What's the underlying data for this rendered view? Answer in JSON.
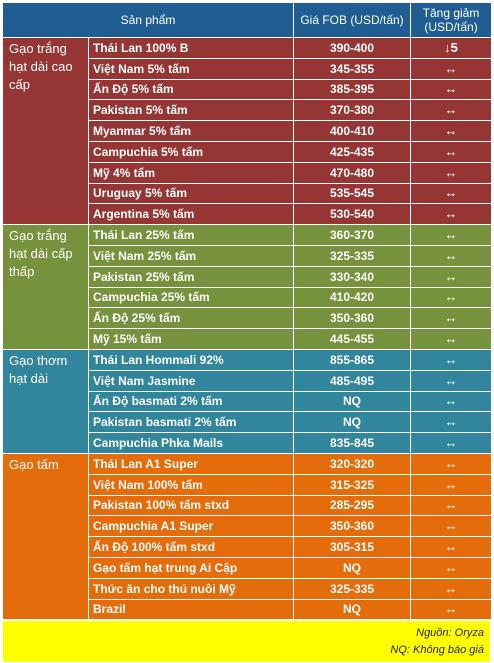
{
  "header": {
    "col_product": "Sản phẩm",
    "col_price": "Giá FOB (USD/tấn)",
    "col_change": "Tăng giảm (USD/tấn)"
  },
  "groups": [
    {
      "name": "Gạo trắng hạt dài cao cấp",
      "color": "#963634",
      "rows": [
        {
          "product": "Thái Lan 100% B",
          "price": "390-400",
          "change": "↓5"
        },
        {
          "product": "Việt Nam 5% tấm",
          "price": "345-355",
          "change": "↔"
        },
        {
          "product": "Ấn Độ 5% tấm",
          "price": "385-395",
          "change": "↔"
        },
        {
          "product": "Pakistan 5% tấm",
          "price": "370-380",
          "change": "↔"
        },
        {
          "product": "Myanmar 5% tấm",
          "price": "400-410",
          "change": "↔"
        },
        {
          "product": "Campuchia 5% tấm",
          "price": "425-435",
          "change": "↔"
        },
        {
          "product": "Mỹ 4% tấm",
          "price": "470-480",
          "change": "↔"
        },
        {
          "product": "Uruguay 5% tấm",
          "price": "535-545",
          "change": "↔"
        },
        {
          "product": "Argentina 5% tấm",
          "price": "530-540",
          "change": "↔"
        }
      ]
    },
    {
      "name": "Gạo trắng hạt dài cấp thấp",
      "color": "#76923c",
      "rows": [
        {
          "product": "Thái Lan 25% tấm",
          "price": "360-370",
          "change": "↔"
        },
        {
          "product": "Việt Nam 25% tấm",
          "price": "325-335",
          "change": "↔"
        },
        {
          "product": "Pakistan 25% tấm",
          "price": "330-340",
          "change": "↔"
        },
        {
          "product": "Campuchia 25% tấm",
          "price": "410-420",
          "change": "↔"
        },
        {
          "product": "Ấn Độ 25% tấm",
          "price": "350-360",
          "change": "↔"
        },
        {
          "product": "Mỹ 15% tấm",
          "price": "445-455",
          "change": "↔"
        }
      ]
    },
    {
      "name": "Gạo thơm hạt dài",
      "color": "#31859c",
      "rows": [
        {
          "product": "Thái Lan Hommali 92%",
          "price": "855-865",
          "change": "↔"
        },
        {
          "product": "Việt Nam Jasmine",
          "price": "485-495",
          "change": "↔"
        },
        {
          "product": "Ấn Độ basmati 2% tấm",
          "price": "NQ",
          "change": "↔"
        },
        {
          "product": "Pakistan basmati 2% tấm",
          "price": "NQ",
          "change": "↔"
        },
        {
          "product": "Campuchia Phka Mails",
          "price": "835-845",
          "change": "↔"
        }
      ]
    },
    {
      "name": "Gạo tấm",
      "color": "#e46c0a",
      "rows": [
        {
          "product": "Thái Lan A1 Super",
          "price": "320-320",
          "change": "↔"
        },
        {
          "product": "Việt Nam 100% tấm",
          "price": "315-325",
          "change": "↔"
        },
        {
          "product": "Pakistan 100% tấm stxd",
          "price": "285-295",
          "change": "↔"
        },
        {
          "product": "Campuchia A1 Super",
          "price": "350-360",
          "change": "↔"
        },
        {
          "product": "Ấn Độ 100% tấm stxd",
          "price": "305-315",
          "change": "↔"
        },
        {
          "product": "Gạo tấm hạt trung Ai Cập",
          "price": "NQ",
          "change": "↔"
        },
        {
          "product": "Thức ăn cho thú nuôi Mỹ",
          "price": "325-335",
          "change": "↔"
        },
        {
          "product": "Brazil",
          "price": "NQ",
          "change": "↔"
        }
      ]
    }
  ],
  "footer": {
    "source": "Nguồn: Oryza",
    "note": "NQ: Không báo giá"
  }
}
